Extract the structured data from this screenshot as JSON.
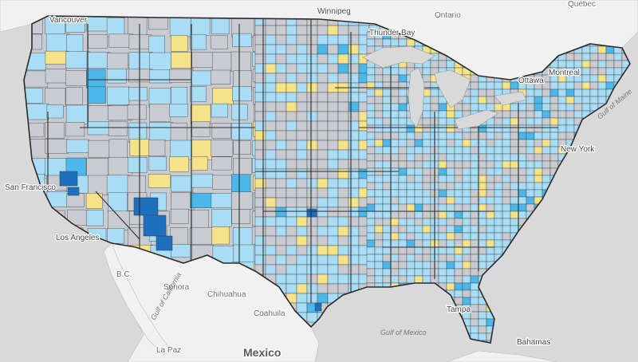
{
  "map": {
    "colors": {
      "ocean": "#d9d9d9",
      "land_other": "#f1f1f1",
      "county_gray": "#c9cbd1",
      "county_yellow": "#f5e38a",
      "county_light_blue": "#a9dcf5",
      "county_mid_blue": "#4cb8ea",
      "county_dark_blue": "#1f6fbf",
      "county_border": "#3b3b3b",
      "state_border": "#2b2b2b"
    },
    "labels": {
      "vancouver": "Vancouver",
      "winnipeg": "Winnipeg",
      "ontario": "Ontario",
      "quebec": "Québec",
      "thunder_bay": "Thunder Bay",
      "ottawa": "Ottawa",
      "montreal": "Montreal",
      "gulf_of_maine": "Gulf of Maine",
      "new_york": "New York",
      "san_francisco": "San Francisco",
      "los_angeles": "Los Angeles",
      "bc": "B.C.",
      "sonora": "Sonora",
      "chihuahua": "Chihuahua",
      "coahuila": "Coahuila",
      "gulf_of_california": "Gulf of California",
      "gulf_of_mexico": "Gulf of Mexico",
      "tampa": "Tampa",
      "bahamas": "Bahamas",
      "la_paz": "La Paz",
      "mexico": "Mexico"
    }
  }
}
